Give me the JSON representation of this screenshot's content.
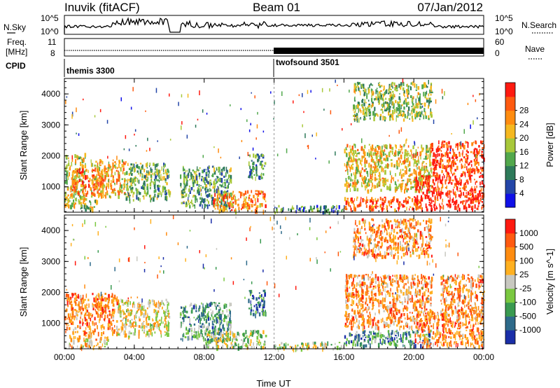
{
  "header": {
    "station": "Inuvik (fitACF)",
    "beam": "Beam 01",
    "date": "07/Jan/2012"
  },
  "strips": {
    "nsky": {
      "label": "N.Sky",
      "ticks": [
        "10^5",
        "10^0"
      ]
    },
    "nsearch": {
      "label": "N.Search",
      "ticks": [
        "10^5",
        "10^0"
      ]
    },
    "freq": {
      "label_line1": "Freq.",
      "label_line2": "[MHz]",
      "ticks": [
        "11",
        "8"
      ]
    },
    "nave": {
      "label": "Nave",
      "ticks": [
        "60",
        "0"
      ]
    },
    "cpid": {
      "label": "CPID",
      "modes": [
        {
          "name": "themis 3300",
          "start_hour": 0
        },
        {
          "name": "twofsound 3501",
          "start_hour": 12
        }
      ]
    }
  },
  "chart_data": [
    {
      "type": "heatmap",
      "name": "power",
      "title": "",
      "xlabel": "",
      "ylabel": "Slant Range [km]",
      "xlim": [
        0,
        24
      ],
      "ylim": [
        180,
        4500
      ],
      "x_ticks": [
        0,
        4,
        8,
        12,
        16,
        20,
        24
      ],
      "y_ticks": [
        1000,
        2000,
        3000,
        4000
      ],
      "colorbar": {
        "label": "Power [dB]",
        "ticks": [
          "4",
          "8",
          "12",
          "16",
          "20",
          "24",
          "28"
        ],
        "colors": [
          "#1010e8",
          "#2446a8",
          "#2e7a5a",
          "#52a84c",
          "#a8c83a",
          "#f5b820",
          "#ff8c10",
          "#ff5a10",
          "#ff1a10"
        ]
      },
      "regions": [
        {
          "x0": 0.0,
          "x1": 1.2,
          "r0": 400,
          "r1": 2100,
          "v": 0.55
        },
        {
          "x0": 0.4,
          "x1": 2.2,
          "r0": 800,
          "r1": 1600,
          "v": 0.8
        },
        {
          "x0": 1.5,
          "x1": 3.5,
          "r0": 700,
          "r1": 1900,
          "v": 0.65
        },
        {
          "x0": 3.5,
          "x1": 6.0,
          "r0": 600,
          "r1": 1800,
          "v": 0.4
        },
        {
          "x0": 0.8,
          "x1": 2.0,
          "r0": 300,
          "r1": 600,
          "v": 0.5
        },
        {
          "x0": 6.6,
          "x1": 9.5,
          "r0": 400,
          "r1": 1700,
          "v": 0.35
        },
        {
          "x0": 8.5,
          "x1": 11.5,
          "r0": 250,
          "r1": 900,
          "v": 0.75
        },
        {
          "x0": 10.5,
          "x1": 11.5,
          "r0": 1300,
          "r1": 2100,
          "v": 0.3
        },
        {
          "x0": 12.0,
          "x1": 16.0,
          "r0": 200,
          "r1": 420,
          "v": 0.25
        },
        {
          "x0": 16.0,
          "x1": 20.5,
          "r0": 300,
          "r1": 700,
          "v": 0.85
        },
        {
          "x0": 16.0,
          "x1": 21.0,
          "r0": 900,
          "r1": 2400,
          "v": 0.6
        },
        {
          "x0": 20.0,
          "x1": 24.0,
          "r0": 300,
          "r1": 1400,
          "v": 0.95
        },
        {
          "x0": 21.0,
          "x1": 24.0,
          "r0": 1400,
          "r1": 2500,
          "v": 0.9
        },
        {
          "x0": 16.5,
          "x1": 21.0,
          "r0": 3200,
          "r1": 4400,
          "v": 0.45
        }
      ]
    },
    {
      "type": "heatmap",
      "name": "velocity",
      "title": "",
      "xlabel": "Time UT",
      "ylabel": "Slant Range [km]",
      "xlim": [
        0,
        24
      ],
      "ylim": [
        180,
        4500
      ],
      "x_ticks": [
        0,
        4,
        8,
        12,
        16,
        20,
        24
      ],
      "x_tick_labels": [
        "00:00",
        "04:00",
        "08:00",
        "12:00",
        "16:00",
        "20:00",
        "00:00"
      ],
      "y_ticks": [
        1000,
        2000,
        3000,
        4000
      ],
      "colorbar": {
        "label": "Velocity [m s^-1]",
        "ticks": [
          "1000",
          "500",
          "100",
          "25",
          "-25",
          "-100",
          "-500",
          "-1000"
        ],
        "colors": [
          "#1a2ea8",
          "#2e6a8a",
          "#3a9a50",
          "#7ac840",
          "#c8c8c0",
          "#ffb020",
          "#ff8c10",
          "#ff5a10",
          "#ff1a10"
        ]
      },
      "regions": [
        {
          "x0": 0.0,
          "x1": 3.0,
          "r0": 700,
          "r1": 2000,
          "v": 0.75
        },
        {
          "x0": 3.0,
          "x1": 6.0,
          "r0": 600,
          "r1": 1800,
          "v": 0.55
        },
        {
          "x0": 0.2,
          "x1": 2.5,
          "r0": 250,
          "r1": 650,
          "v": 0.6
        },
        {
          "x0": 6.6,
          "x1": 9.5,
          "r0": 500,
          "r1": 1700,
          "v": 0.3
        },
        {
          "x0": 8.0,
          "x1": 11.5,
          "r0": 250,
          "r1": 800,
          "v": 0.45
        },
        {
          "x0": 10.5,
          "x1": 11.5,
          "r0": 1300,
          "r1": 2100,
          "v": 0.2
        },
        {
          "x0": 12.0,
          "x1": 16.0,
          "r0": 200,
          "r1": 420,
          "v": 0.45
        },
        {
          "x0": 16.0,
          "x1": 21.0,
          "r0": 300,
          "r1": 800,
          "v": 0.25
        },
        {
          "x0": 16.0,
          "x1": 21.0,
          "r0": 900,
          "r1": 2600,
          "v": 0.7
        },
        {
          "x0": 20.0,
          "x1": 24.0,
          "r0": 300,
          "r1": 1500,
          "v": 0.75
        },
        {
          "x0": 21.5,
          "x1": 24.0,
          "r0": 1500,
          "r1": 2600,
          "v": 0.72
        },
        {
          "x0": 16.5,
          "x1": 21.0,
          "r0": 3200,
          "r1": 4400,
          "v": 0.7
        }
      ]
    }
  ]
}
